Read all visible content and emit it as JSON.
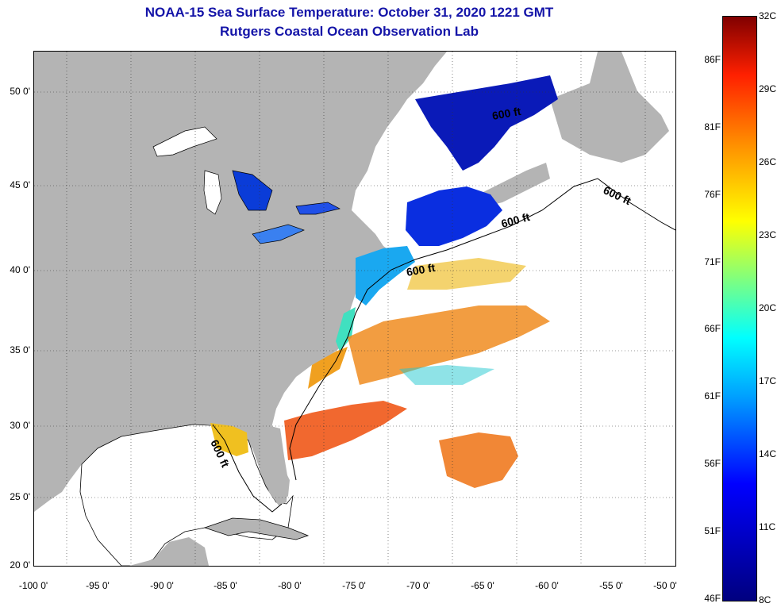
{
  "header": {
    "title": "NOAA-15 Sea Surface Temperature:  October 31, 2020 1221 GMT",
    "subtitle": "Rutgers Coastal Ocean Observation Lab"
  },
  "map": {
    "lat_labels": [
      "50 0'",
      "45 0'",
      "40 0'",
      "35 0'",
      "30 0'",
      "25 0'",
      "20 0'"
    ],
    "lon_labels": [
      "-100 0'",
      "-95 0'",
      "-90 0'",
      "-85 0'",
      "-80 0'",
      "-75 0'",
      "-70 0'",
      "-65 0'",
      "-60 0'",
      "-55 0'",
      "-50 0'"
    ],
    "contour_labels": [
      "600 ft",
      "600 ft",
      "600 ft",
      "600 ft",
      "600 ft"
    ],
    "colors": {
      "land": "#b4b4b4",
      "ocean": "#ffffff",
      "title": "#1414a8"
    }
  },
  "colorbar": {
    "fahrenheit": [
      "86F",
      "81F",
      "76F",
      "71F",
      "66F",
      "61F",
      "56F",
      "51F",
      "46F"
    ],
    "celsius": [
      "32C",
      "29C",
      "26C",
      "23C",
      "20C",
      "17C",
      "14C",
      "11C",
      "8C"
    ]
  }
}
